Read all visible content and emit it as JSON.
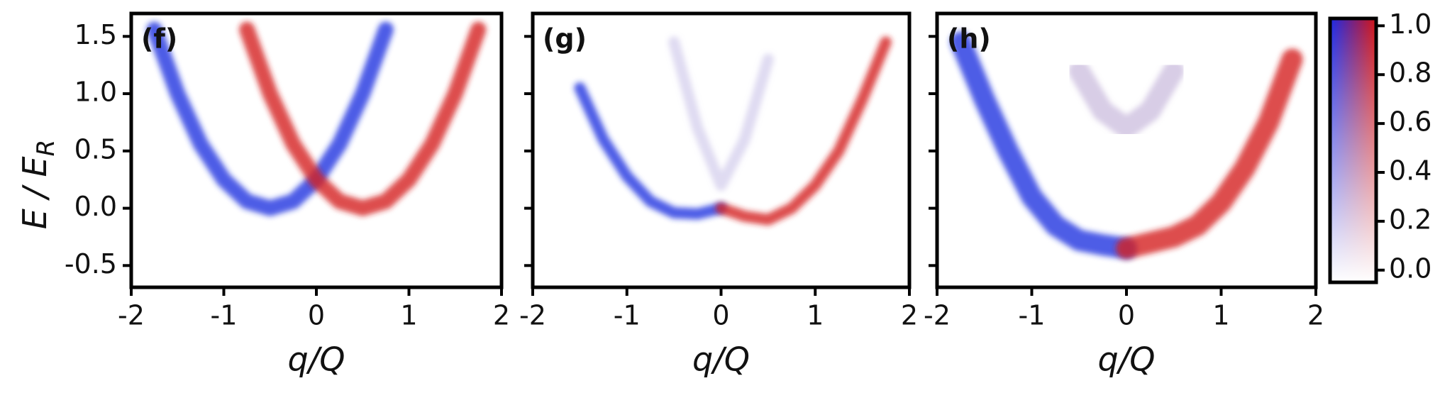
{
  "chart_data": [
    {
      "type": "line",
      "label": "(f)",
      "ylabel": "E / E",
      "ylabel_sub": "R",
      "xlabel": "q/Q",
      "x": [
        -1.75,
        -1.5,
        -1.25,
        -1,
        -0.75,
        -0.5,
        -0.25,
        0,
        0.25,
        0.5,
        0.75,
        1,
        1.25,
        1.5,
        1.75
      ],
      "series": [
        {
          "color": "#2233e0",
          "values": [
            1.56,
            1,
            0.56,
            0.25,
            0.06,
            0,
            0.06,
            0.25,
            0.56,
            1,
            1.56,
            null,
            null,
            null,
            null
          ]
        },
        {
          "color": "#d42020",
          "values": [
            null,
            null,
            null,
            null,
            1.56,
            1,
            0.56,
            0.25,
            0.06,
            0,
            0.06,
            0.25,
            0.56,
            1,
            1.56
          ]
        }
      ],
      "xlim": [
        -2,
        2
      ],
      "xticks": [
        -2,
        -1,
        0,
        1,
        2
      ],
      "ylim": [
        -0.69,
        1.7
      ],
      "yticks": [
        -0.5,
        {
          "value": 0,
          "label": "0.0"
        },
        0.5,
        {
          "value": 1,
          "label": "1.0"
        },
        1.5
      ]
    },
    {
      "type": "line",
      "label": "(g)",
      "xlabel": "q/Q",
      "x": [
        -1.75,
        -1.5,
        -1.25,
        -1,
        -0.75,
        -0.5,
        -0.25,
        0,
        0.25,
        0.5,
        0.75,
        1,
        1.25,
        1.5,
        1.75
      ],
      "series": [
        {
          "color": "#2233e0",
          "values": [
            null,
            1.05,
            0.6,
            0.28,
            0.06,
            -0.04,
            -0.05,
            0,
            null,
            null,
            null,
            null,
            null,
            null,
            null
          ]
        },
        {
          "color": "#d42020",
          "values": [
            null,
            null,
            null,
            null,
            null,
            null,
            null,
            0,
            -0.07,
            -0.1,
            0,
            0.2,
            0.5,
            0.95,
            1.45
          ]
        },
        {
          "color": "#b8b0e0",
          "values": [
            null,
            null,
            null,
            null,
            null,
            1.45,
            0.7,
            0.2,
            0.6,
            1.3,
            null,
            null,
            null,
            null,
            null
          ]
        }
      ],
      "xlim": [
        -2,
        2
      ],
      "xticks": [
        -2,
        -1,
        0,
        1,
        2
      ],
      "ylim": [
        -0.69,
        1.7
      ]
    },
    {
      "type": "line",
      "label": "(h)",
      "xlabel": "q/Q",
      "x": [
        -1.75,
        -1.5,
        -1.25,
        -1,
        -0.75,
        -0.5,
        -0.25,
        0,
        0.25,
        0.5,
        0.75,
        1,
        1.25,
        1.5,
        1.75
      ],
      "series": [
        {
          "color": "#2233e0",
          "values": [
            1.45,
            0.95,
            0.5,
            0.1,
            -0.15,
            -0.28,
            -0.32,
            -0.35,
            null,
            null,
            null,
            null,
            null,
            null,
            null
          ]
        },
        {
          "color": "#d42020",
          "values": [
            null,
            null,
            null,
            null,
            null,
            null,
            null,
            -0.35,
            -0.3,
            -0.25,
            -0.15,
            0.05,
            0.35,
            0.75,
            1.3
          ]
        },
        {
          "color": "#a890c8",
          "values": [
            null,
            null,
            null,
            null,
            null,
            1.2,
            0.85,
            0.7,
            0.85,
            1.2,
            null,
            null,
            null,
            null,
            null
          ]
        }
      ],
      "xlim": [
        -2,
        2
      ],
      "xticks": [
        -2,
        -1,
        0,
        1,
        2
      ],
      "ylim": [
        -0.69,
        1.7
      ],
      "colorbar": {
        "colors": [
          "#1a2ae8",
          "#d41414"
        ],
        "clim": [
          -0.05,
          1.03
        ],
        "ticks": [
          {
            "value": 0,
            "label": "0.0"
          },
          0.2,
          0.4,
          0.6,
          0.8,
          {
            "value": 1,
            "label": "1.0"
          }
        ]
      }
    }
  ]
}
